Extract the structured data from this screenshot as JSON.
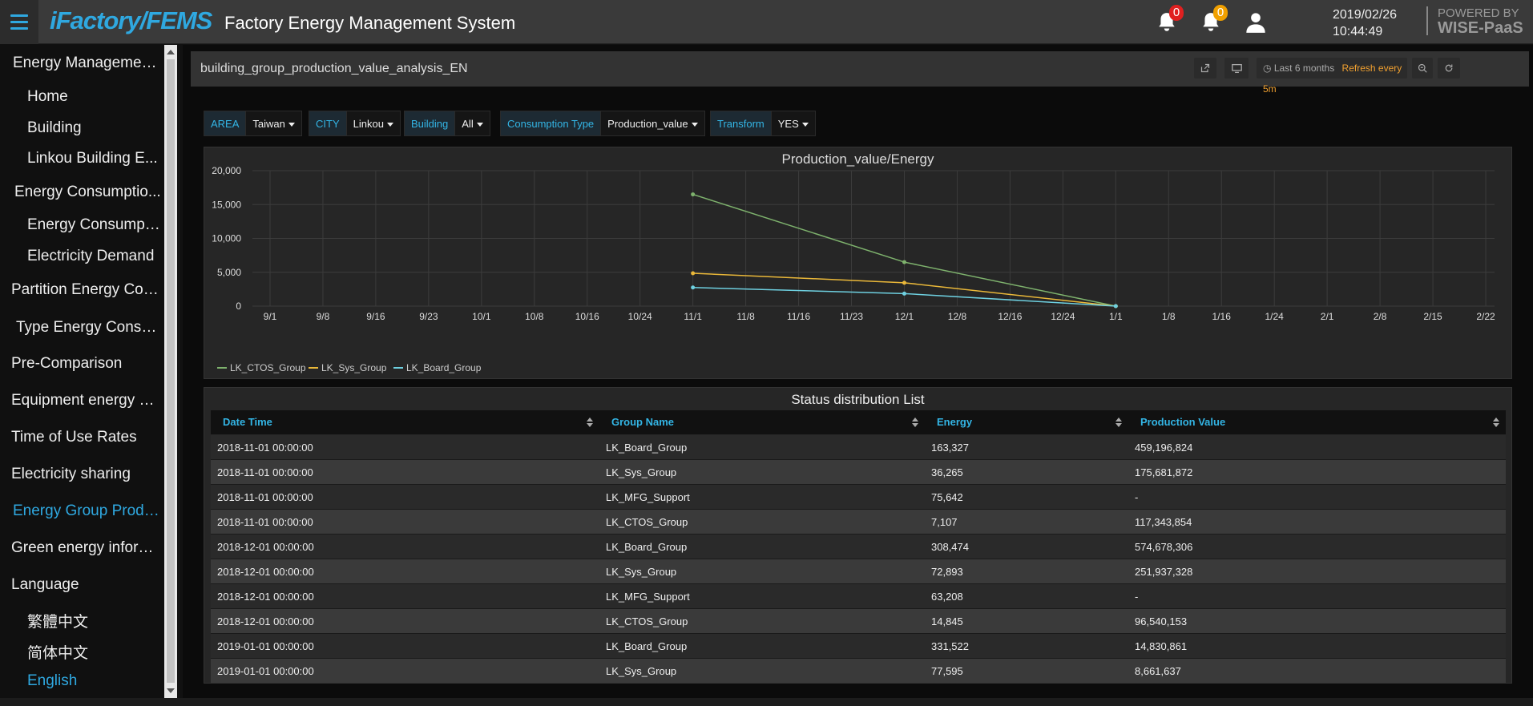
{
  "header": {
    "logo": "iFactory/FEMS",
    "app_title": "Factory Energy Management System",
    "alarm_count_red": "0",
    "alarm_count_orange": "0",
    "date": "2019/02/26",
    "time": "10:44:49",
    "powered_by": "POWERED BY",
    "brand": "WISE-PaaS"
  },
  "sidebar": {
    "items": [
      {
        "label": "Energy Managemen..."
      },
      {
        "label": "Home"
      },
      {
        "label": "Building"
      },
      {
        "label": "Linkou Building E..."
      },
      {
        "label": "Energy Consumptio..."
      },
      {
        "label": "Energy Consumpti..."
      },
      {
        "label": "Electricity Demand"
      },
      {
        "label": "Partition Energy Con..."
      },
      {
        "label": "Type Energy Consu..."
      },
      {
        "label": "Pre-Comparison"
      },
      {
        "label": "Equipment energy ef..."
      },
      {
        "label": "Time of Use Rates"
      },
      {
        "label": "Electricity sharing"
      },
      {
        "label": "Energy Group Produ..."
      },
      {
        "label": "Green energy inform..."
      },
      {
        "label": "Language"
      },
      {
        "label": "繁體中文"
      },
      {
        "label": "简体中文"
      },
      {
        "label": "English"
      }
    ]
  },
  "dashboard": {
    "title": "building_group_production_value_analysis_EN",
    "time_range": "Last 6 months",
    "refresh": "Refresh every 5m"
  },
  "filters": [
    {
      "label": "AREA",
      "value": "Taiwan"
    },
    {
      "label": "CITY",
      "value": "Linkou"
    },
    {
      "label": "Building",
      "value": "All"
    },
    {
      "label": "Consumption Type",
      "value": "Production_value"
    },
    {
      "label": "Transform",
      "value": "YES"
    }
  ],
  "chart_data": {
    "type": "line",
    "title": "Production_value/Energy",
    "x": [
      "9/1",
      "9/8",
      "9/16",
      "9/23",
      "10/1",
      "10/8",
      "10/16",
      "10/24",
      "11/1",
      "11/8",
      "11/16",
      "11/23",
      "12/1",
      "12/8",
      "12/16",
      "12/24",
      "1/1",
      "1/8",
      "1/16",
      "1/24",
      "2/1",
      "2/8",
      "2/15",
      "2/22"
    ],
    "ylim": [
      0,
      20000
    ],
    "yticks": [
      "0",
      "5,000",
      "10,000",
      "15,000",
      "20,000"
    ],
    "grid": true,
    "legend_position": "bottom-left",
    "series": [
      {
        "name": "LK_CTOS_Group",
        "color": "#7eb26d",
        "points": [
          [
            "11/1",
            16500
          ],
          [
            "12/1",
            6500
          ],
          [
            "1/1",
            0
          ]
        ]
      },
      {
        "name": "LK_Sys_Group",
        "color": "#eab839",
        "points": [
          [
            "11/1",
            4850
          ],
          [
            "12/1",
            3450
          ],
          [
            "1/1",
            0
          ]
        ]
      },
      {
        "name": "LK_Board_Group",
        "color": "#6ed0e0",
        "points": [
          [
            "11/1",
            2750
          ],
          [
            "12/1",
            1850
          ],
          [
            "1/1",
            0
          ]
        ]
      }
    ]
  },
  "table": {
    "title": "Status distribution List",
    "columns": [
      "Date Time",
      "Group Name",
      "Energy",
      "Production Value"
    ],
    "rows": [
      [
        "2018-11-01 00:00:00",
        "LK_Board_Group",
        "163,327",
        "459,196,824"
      ],
      [
        "2018-11-01 00:00:00",
        "LK_Sys_Group",
        "36,265",
        "175,681,872"
      ],
      [
        "2018-11-01 00:00:00",
        "LK_MFG_Support",
        "75,642",
        "-"
      ],
      [
        "2018-11-01 00:00:00",
        "LK_CTOS_Group",
        "7,107",
        "117,343,854"
      ],
      [
        "2018-12-01 00:00:00",
        "LK_Board_Group",
        "308,474",
        "574,678,306"
      ],
      [
        "2018-12-01 00:00:00",
        "LK_Sys_Group",
        "72,893",
        "251,937,328"
      ],
      [
        "2018-12-01 00:00:00",
        "LK_MFG_Support",
        "63,208",
        "-"
      ],
      [
        "2018-12-01 00:00:00",
        "LK_CTOS_Group",
        "14,845",
        "96,540,153"
      ],
      [
        "2019-01-01 00:00:00",
        "LK_Board_Group",
        "331,522",
        "14,830,861"
      ],
      [
        "2019-01-01 00:00:00",
        "LK_Sys_Group",
        "77,595",
        "8,661,637"
      ]
    ]
  }
}
